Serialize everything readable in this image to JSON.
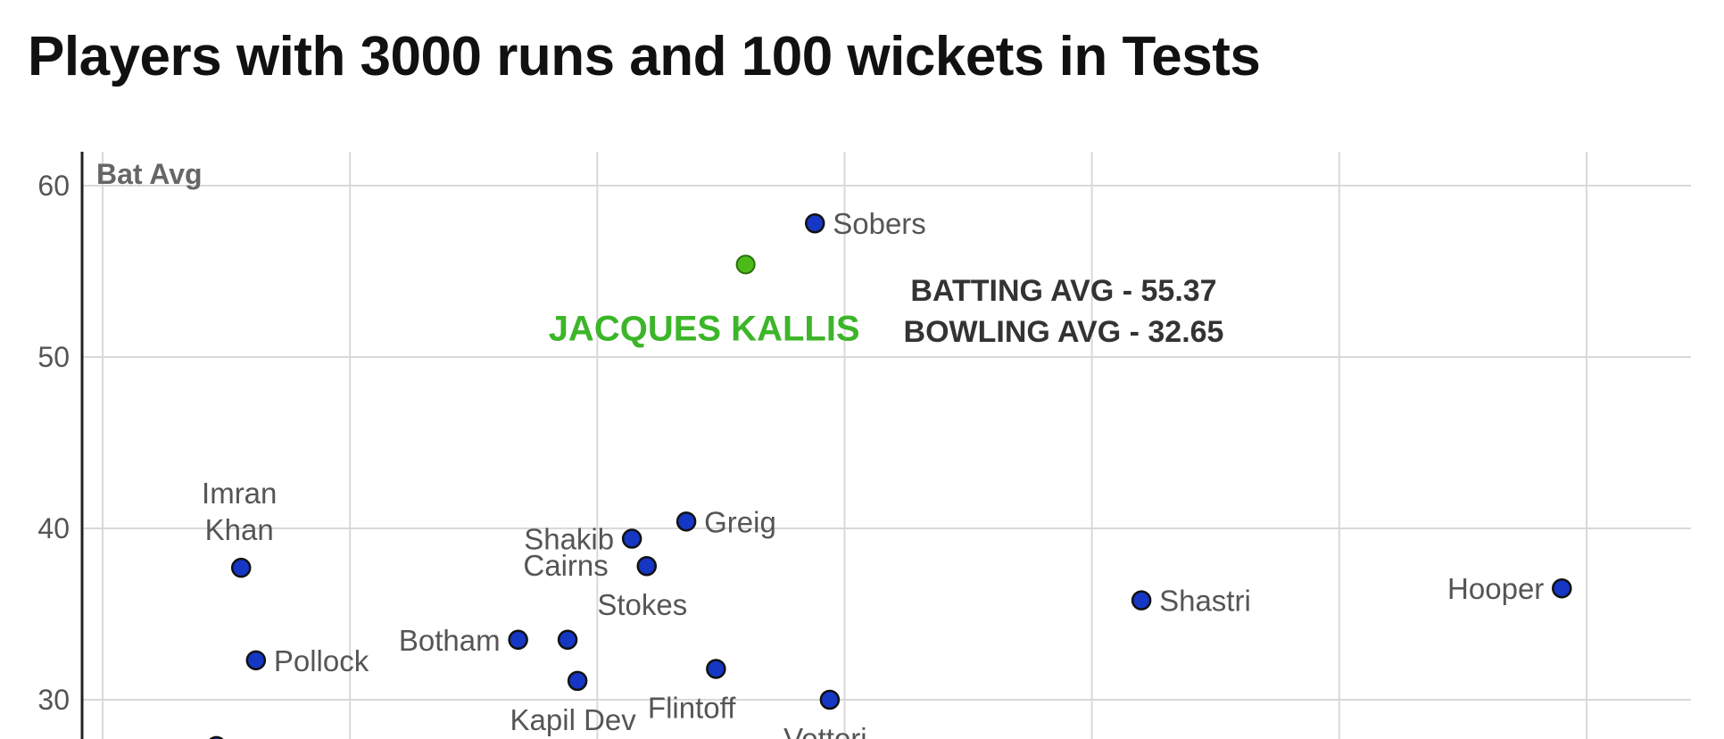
{
  "chart_data": {
    "type": "scatter",
    "title": "Players with 3000 runs and 100 wickets in Tests",
    "ylabel": "Bat Avg",
    "xlabel": "",
    "ylim": [
      27,
      61
    ],
    "xlim": [
      22,
      54.5
    ],
    "yticks": [
      30,
      40,
      50,
      60
    ],
    "xgrid": [
      22.5,
      27.5,
      32.5,
      37.5,
      42.5,
      47.5,
      52.5
    ],
    "grid": true,
    "colors": {
      "point": "#1537c4",
      "highlight": "#4cbb17",
      "highlight_text": "#3db52a",
      "grid": "#d9d9d9",
      "axis": "#222222"
    },
    "points": [
      {
        "name": "Sobers",
        "x": 36.9,
        "y": 57.8,
        "label_side": "right"
      },
      {
        "name": "Imran Khan",
        "lines": [
          "Imran",
          "Khan"
        ],
        "x": 25.3,
        "y": 37.7,
        "label_side": "above"
      },
      {
        "name": "Pollock",
        "x": 25.6,
        "y": 32.3,
        "label_side": "right"
      },
      {
        "name": "Shakib",
        "x": 33.2,
        "y": 39.4,
        "label_side": "left"
      },
      {
        "name": "Greig",
        "x": 34.3,
        "y": 40.4,
        "label_side": "right"
      },
      {
        "name": "Stokes",
        "x": 33.5,
        "y": 37.8,
        "label_side": "below"
      },
      {
        "name": "Cairns",
        "x": 31.9,
        "y": 33.5,
        "label_side": "above"
      },
      {
        "name": "Botham",
        "x": 30.9,
        "y": 33.5,
        "label_side": "left"
      },
      {
        "name": "Kapil Dev",
        "x": 32.1,
        "y": 31.1,
        "label_side": "below"
      },
      {
        "name": "Flintoff",
        "x": 34.9,
        "y": 31.8,
        "label_side": "below-left"
      },
      {
        "name": "Vettori",
        "x": 37.2,
        "y": 30.0,
        "label_side": "below"
      },
      {
        "name": "Shastri",
        "x": 43.5,
        "y": 35.8,
        "label_side": "right"
      },
      {
        "name": "Hooper",
        "x": 52.0,
        "y": 36.5,
        "label_side": "left"
      },
      {
        "name": "",
        "x": 24.8,
        "y": 27.3,
        "label_side": "none"
      }
    ],
    "highlight": {
      "name": "JACQUES KALLIS",
      "x": 35.5,
      "y": 55.4,
      "stat_lines": [
        "BATTING AVG - 55.37",
        "BOWLING AVG - 32.65"
      ]
    }
  }
}
